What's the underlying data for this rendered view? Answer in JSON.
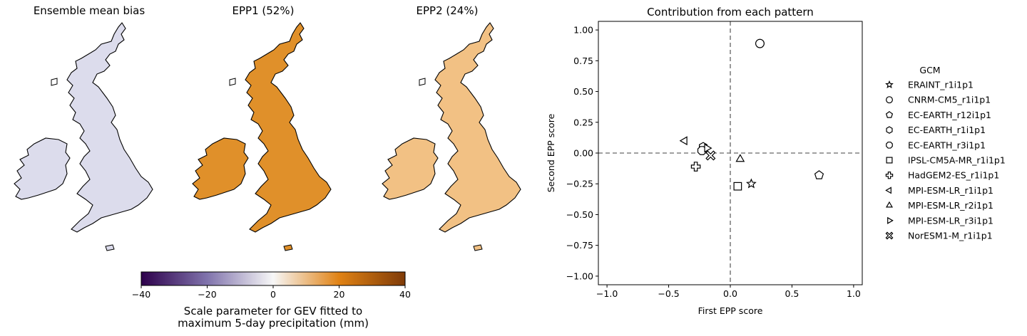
{
  "maps": [
    {
      "title": "Ensemble mean bias",
      "fill": "#dcdcec"
    },
    {
      "title": "EPP1 (52%)",
      "fill": "#e0902a"
    },
    {
      "title": "EPP2 (24%)",
      "fill": "#f2c184"
    }
  ],
  "colorbar": {
    "ticks": [
      -40,
      -20,
      0,
      20,
      40
    ],
    "tick_labels": [
      "−40",
      "−20",
      "0",
      "20",
      "40"
    ],
    "range": [
      -40,
      40
    ],
    "colors": [
      "#2d004b",
      "#8073ac",
      "#f7f7f7",
      "#e08214",
      "#7f3b08"
    ],
    "label_line1": "Scale parameter for GEV fitted to",
    "label_line2": "maximum 5-day precipitation (mm)"
  },
  "chart_data": {
    "type": "scatter",
    "title": "Contribution from each pattern",
    "xlabel": "First EPP score",
    "ylabel": "Second EPP score",
    "xlim": [
      -1.07,
      1.07
    ],
    "ylim": [
      -1.07,
      1.07
    ],
    "xticks": [
      -1.0,
      -0.5,
      0.0,
      0.5,
      1.0
    ],
    "xtick_labels": [
      "−1.0",
      "−0.5",
      "0.0",
      "0.5",
      "1.0"
    ],
    "yticks": [
      1.0,
      0.75,
      0.5,
      0.25,
      0.0,
      -0.25,
      -0.5,
      -0.75,
      -1.0
    ],
    "ytick_labels": [
      "1.00",
      "0.75",
      "0.50",
      "0.25",
      "0.00",
      "−0.25",
      "−0.50",
      "−0.75",
      "−1.00"
    ],
    "reference_lines": {
      "x": 0,
      "y": 0,
      "style": "dashed",
      "color": "#808080"
    },
    "legend_title": "GCM",
    "legend_position": "right",
    "series": [
      {
        "name": "ERAINT_r1i1p1",
        "marker": "star",
        "x": 0.17,
        "y": -0.25
      },
      {
        "name": "CNRM-CM5_r1i1p1",
        "marker": "circle",
        "x": 0.24,
        "y": 0.89
      },
      {
        "name": "EC-EARTH_r12i1p1",
        "marker": "pentagon",
        "x": 0.72,
        "y": -0.18
      },
      {
        "name": "EC-EARTH_r1i1p1",
        "marker": "hexagon",
        "x": -0.22,
        "y": 0.05
      },
      {
        "name": "EC-EARTH_r3i1p1",
        "marker": "octagon",
        "x": -0.23,
        "y": 0.02
      },
      {
        "name": "IPSL-CM5A-MR_r1i1p1",
        "marker": "square",
        "x": 0.06,
        "y": -0.27
      },
      {
        "name": "HadGEM2-ES_r1i1p1",
        "marker": "plus",
        "x": -0.28,
        "y": -0.11
      },
      {
        "name": "MPI-ESM-LR_r1i1p1",
        "marker": "triangle-left",
        "x": -0.37,
        "y": 0.1
      },
      {
        "name": "MPI-ESM-LR_r2i1p1",
        "marker": "triangle-up",
        "x": 0.08,
        "y": -0.05
      },
      {
        "name": "MPI-ESM-LR_r3i1p1",
        "marker": "triangle-right",
        "x": -0.19,
        "y": 0.04
      },
      {
        "name": "NorESM1-M_r1i1p1",
        "marker": "x-filled",
        "x": -0.16,
        "y": -0.02
      }
    ]
  }
}
